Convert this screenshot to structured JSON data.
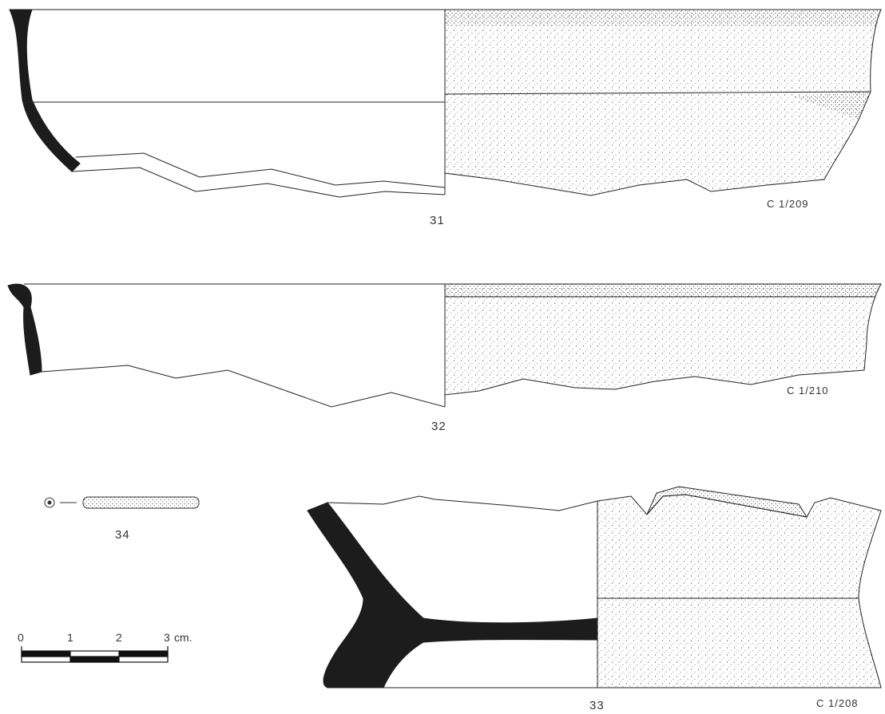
{
  "figures": [
    {
      "number": "31",
      "catalog": "C 1/209"
    },
    {
      "number": "32",
      "catalog": "C 1/210"
    },
    {
      "number": "33",
      "catalog": "C 1/208"
    },
    {
      "number": "34"
    }
  ],
  "scale": {
    "ticks": [
      "0",
      "1",
      "2",
      "3"
    ],
    "unit": "cm."
  }
}
